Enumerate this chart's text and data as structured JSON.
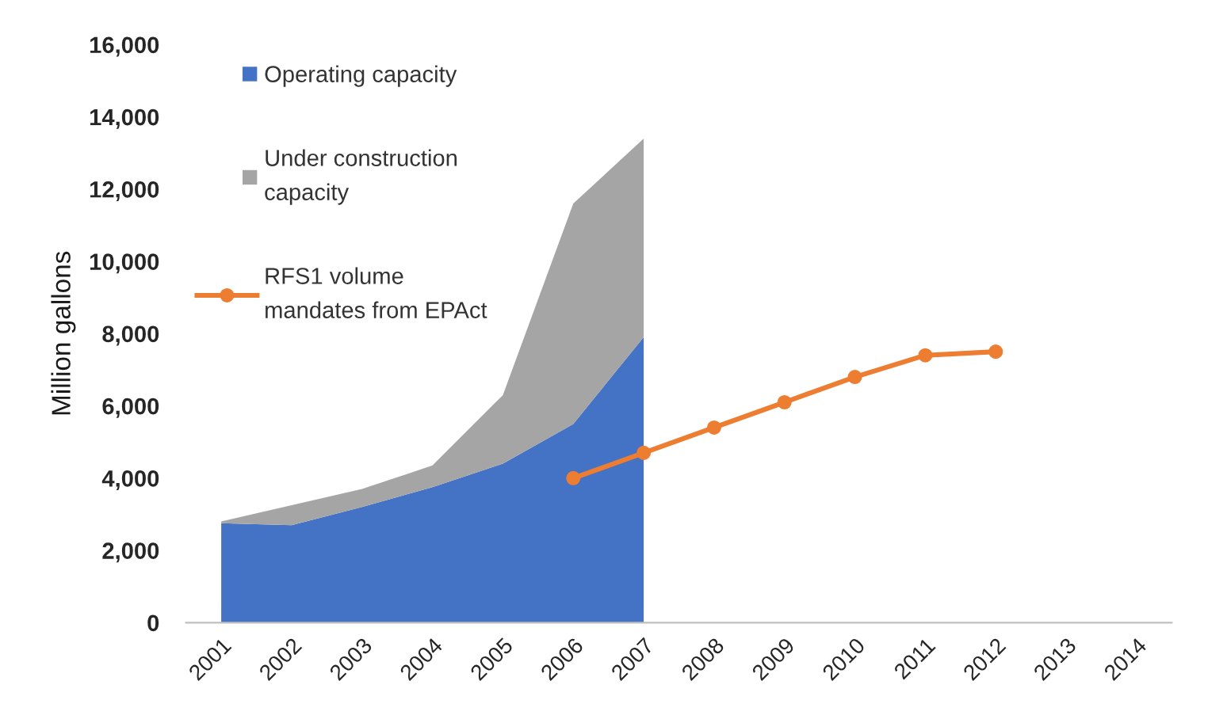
{
  "chart_data": {
    "type": "area",
    "stacked": true,
    "ylabel": "Million gallons",
    "categories": [
      "2001",
      "2002",
      "2003",
      "2004",
      "2005",
      "2006",
      "2007",
      "2008",
      "2009",
      "2010",
      "2011",
      "2012",
      "2013",
      "2014"
    ],
    "series": [
      {
        "name": "Operating capacity",
        "color": "#4472c4",
        "values": [
          2750,
          2700,
          3200,
          3750,
          4400,
          5500,
          7900,
          null,
          null,
          null,
          null,
          null,
          null,
          null
        ]
      },
      {
        "name": "Under construction\ncapacity",
        "color": "#a5a5a5",
        "values": [
          50,
          550,
          500,
          600,
          1900,
          6100,
          5500,
          null,
          null,
          null,
          null,
          null,
          null,
          null
        ]
      },
      {
        "name": "RFS1 volume\nmandates from EPAct",
        "type": "line",
        "color": "#ed7d31",
        "marker": "circle",
        "line_style": "solid",
        "values": [
          null,
          null,
          null,
          null,
          null,
          4000,
          4700,
          5400,
          6100,
          6800,
          7400,
          7500,
          null,
          null
        ]
      }
    ],
    "ylim": [
      0,
      16000
    ],
    "yticks": [
      {
        "value": 0,
        "label": "0"
      },
      {
        "value": 2000,
        "label": "2,000"
      },
      {
        "value": 4000,
        "label": "4,000"
      },
      {
        "value": 6000,
        "label": "6,000"
      },
      {
        "value": 8000,
        "label": "8,000"
      },
      {
        "value": 10000,
        "label": "10,000"
      },
      {
        "value": 12000,
        "label": "12,000"
      },
      {
        "value": 14000,
        "label": "14,000"
      },
      {
        "value": 16000,
        "label": "16,000"
      }
    ],
    "grid": false,
    "legend": "top left"
  }
}
